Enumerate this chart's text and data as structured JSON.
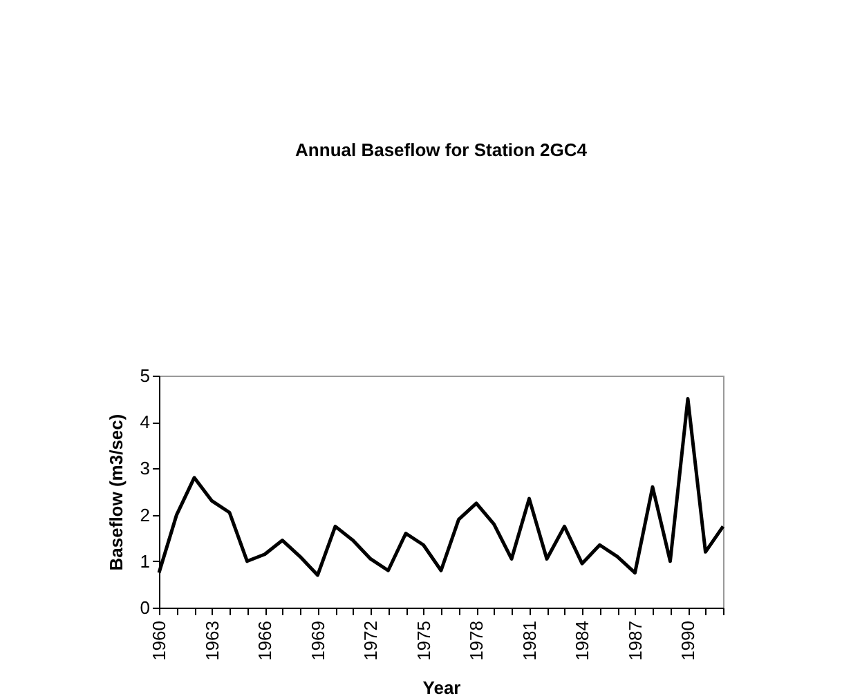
{
  "chart_data": {
    "type": "line",
    "title": "Annual Baseflow for Station 2GC4",
    "xlabel": "Year",
    "ylabel": "Baseflow (m3/sec)",
    "categories": [
      "1960",
      null,
      null,
      "1963",
      null,
      null,
      "1966",
      null,
      null,
      "1969",
      null,
      null,
      "1972",
      null,
      null,
      "1975",
      null,
      null,
      "1978",
      null,
      null,
      "1981",
      null,
      null,
      "1984",
      null,
      null,
      "1987",
      null,
      null,
      "1990",
      null,
      null
    ],
    "series": [
      {
        "color": "#000000",
        "values": [
          0.75,
          2.0,
          2.8,
          2.3,
          2.05,
          1.0,
          1.15,
          1.45,
          1.1,
          0.7,
          1.75,
          1.45,
          1.05,
          0.8,
          1.6,
          1.35,
          0.8,
          1.9,
          2.25,
          1.8,
          1.05,
          2.35,
          1.05,
          1.75,
          0.95,
          1.35,
          1.1,
          0.75,
          2.6,
          1.0,
          4.5,
          1.2,
          1.75
        ]
      }
    ],
    "ylim": [
      0,
      5
    ],
    "yticks": [
      0,
      1,
      2,
      3,
      4,
      5
    ],
    "grid": false,
    "marker": "none",
    "line_style": "solid"
  }
}
